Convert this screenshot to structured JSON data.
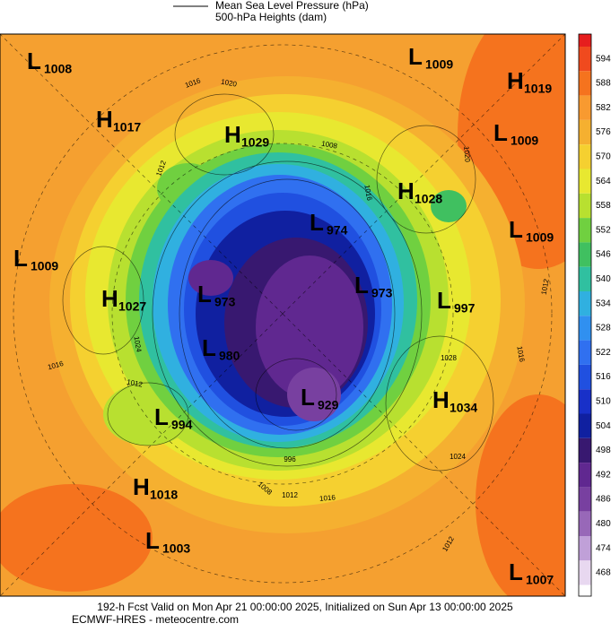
{
  "header": {
    "line1": "Mean Sea Level Pressure (hPa)",
    "line2": "500-hPa Heights (dam)"
  },
  "map": {
    "centers": [
      {
        "letter": "L",
        "value": "1008"
      },
      {
        "letter": "L",
        "value": "1009"
      },
      {
        "letter": "H",
        "value": "1019"
      },
      {
        "letter": "H",
        "value": "1017"
      },
      {
        "letter": "H",
        "value": "1029"
      },
      {
        "letter": "L",
        "value": "1009"
      },
      {
        "letter": "H",
        "value": "1028"
      },
      {
        "letter": "L",
        "value": "974"
      },
      {
        "letter": "L",
        "value": "1009"
      },
      {
        "letter": "L",
        "value": "1009"
      },
      {
        "letter": "H",
        "value": "1027"
      },
      {
        "letter": "L",
        "value": "973"
      },
      {
        "letter": "L",
        "value": "973"
      },
      {
        "letter": "L",
        "value": "997"
      },
      {
        "letter": "L",
        "value": "980"
      },
      {
        "letter": "L",
        "value": "929"
      },
      {
        "letter": "H",
        "value": "1034"
      },
      {
        "letter": "L",
        "value": "994"
      },
      {
        "letter": "H",
        "value": "1018"
      },
      {
        "letter": "L",
        "value": "1003"
      },
      {
        "letter": "L",
        "value": "1007"
      }
    ],
    "contour_labels": [
      "1016",
      "1020",
      "1012",
      "1008",
      "1016",
      "1020",
      "1024",
      "1016",
      "1012",
      "1028",
      "1024",
      "1016",
      "1012",
      "1008",
      "1012",
      "1016",
      "1012",
      "996"
    ]
  },
  "colorbar": {
    "ticks": [
      594,
      588,
      582,
      576,
      570,
      564,
      558,
      552,
      546,
      540,
      534,
      528,
      522,
      516,
      510,
      504,
      498,
      492,
      486,
      480,
      474,
      468
    ],
    "colors": [
      "#f04a1e",
      "#f5731e",
      "#f89a30",
      "#f5b030",
      "#f5d030",
      "#e8e830",
      "#b8e030",
      "#70d040",
      "#40c060",
      "#30c0a0",
      "#30b0e0",
      "#3090f0",
      "#3070f0",
      "#2050e0",
      "#1830c8",
      "#1020a0",
      "#381870",
      "#602890",
      "#7840a0",
      "#9868b8",
      "#c0a0d8",
      "#e8d8f0"
    ]
  },
  "footer": {
    "line1": "192-h Fcst Valid on Mon Apr 21 00:00:00 2025, Initialized on Sun Apr 13 00:00:00 2025",
    "line2": "ECMWF-HRES  - meteocentre.com"
  }
}
